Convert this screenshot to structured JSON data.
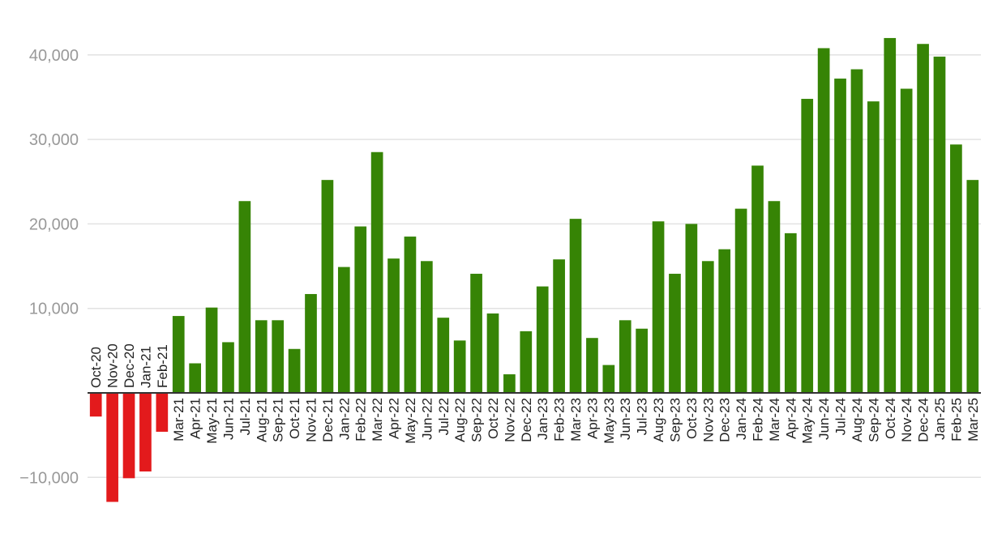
{
  "chart_data": {
    "type": "bar",
    "title": "",
    "xlabel": "",
    "ylabel": "",
    "ylim": [
      -13500,
      44000
    ],
    "yticks": [
      -10000,
      10000,
      20000,
      30000,
      40000
    ],
    "ytick_labels": [
      "−10,000",
      "10,000",
      "20,000",
      "30,000",
      "40,000"
    ],
    "grid": true,
    "legend": "none",
    "colors": {
      "positive": "#368405",
      "negative": "#e31a1c"
    },
    "categories": [
      "Oct-20",
      "Nov-20",
      "Dec-20",
      "Jan-21",
      "Feb-21",
      "Mar-21",
      "Apr-21",
      "May-21",
      "Jun-21",
      "Jul-21",
      "Aug-21",
      "Sep-21",
      "Oct-21",
      "Nov-21",
      "Dec-21",
      "Jan-22",
      "Feb-22",
      "Mar-22",
      "Apr-22",
      "May-22",
      "Jun-22",
      "Jul-22",
      "Aug-22",
      "Sep-22",
      "Oct-22",
      "Nov-22",
      "Dec-22",
      "Jan-23",
      "Feb-23",
      "Mar-23",
      "Apr-23",
      "May-23",
      "Jun-23",
      "Jul-23",
      "Aug-23",
      "Sep-23",
      "Oct-23",
      "Nov-23",
      "Dec-23",
      "Jan-24",
      "Feb-24",
      "Mar-24",
      "Apr-24",
      "May-24",
      "Jun-24",
      "Jul-24",
      "Aug-24",
      "Sep-24",
      "Oct-24",
      "Nov-24",
      "Dec-24",
      "Jan-25",
      "Feb-25",
      "Mar-25"
    ],
    "values": [
      -2800,
      -12900,
      -10100,
      -9300,
      -4600,
      9100,
      3500,
      10100,
      6000,
      22700,
      8600,
      8600,
      5200,
      11700,
      25200,
      14900,
      19700,
      28500,
      15900,
      18500,
      15600,
      8900,
      6200,
      14100,
      9400,
      2200,
      7300,
      12600,
      15800,
      20600,
      6500,
      3300,
      8600,
      7600,
      20300,
      14100,
      20000,
      15600,
      17000,
      21800,
      26900,
      22700,
      18900,
      34800,
      40800,
      37200,
      38300,
      34500,
      42000,
      36000,
      41300,
      39800,
      29400,
      25200
    ]
  }
}
